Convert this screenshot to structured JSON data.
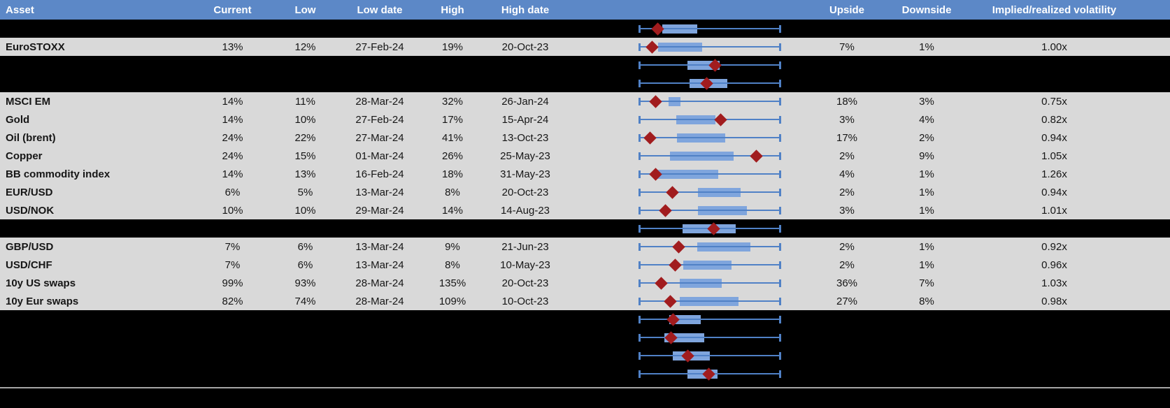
{
  "colors": {
    "header_bg": "#5c88c7",
    "header_text": "#ffffff",
    "row_bg": "#d9d9d9",
    "spacer_bg": "#000000",
    "box_fill": "#7fa5dd",
    "whisker": "#5081c6",
    "marker": "#a11c1e",
    "footer_line": "#a6a6a6"
  },
  "header": {
    "columns": [
      "Asset",
      "Current",
      "Low",
      "Low date",
      "High",
      "High date",
      "",
      "Upside",
      "Downside",
      "Implied/realized volatility",
      ""
    ]
  },
  "rows": [
    {
      "type": "chart-only",
      "box": {
        "lo": 0.167,
        "hi": 0.412,
        "marker": 0.137
      }
    },
    {
      "type": "data",
      "asset": "EuroSTOXX",
      "current": "13%",
      "low": "12%",
      "low_date": "27-Feb-24",
      "high": "19%",
      "high_date": "20-Oct-23",
      "upside": "7%",
      "downside": "1%",
      "implied_realized": "1.00x",
      "box": {
        "lo": 0.136,
        "hi": 0.446,
        "marker": 0.097
      }
    },
    {
      "type": "chart-only",
      "box": {
        "lo": 0.345,
        "hi": 0.57,
        "marker": 0.538
      }
    },
    {
      "type": "chart-only",
      "box": {
        "lo": 0.358,
        "hi": 0.623,
        "marker": 0.48
      }
    },
    {
      "type": "data",
      "asset": "MSCI EM",
      "current": "14%",
      "low": "11%",
      "low_date": "28-Mar-24",
      "high": "32%",
      "high_date": "26-Jan-24",
      "upside": "18%",
      "downside": "3%",
      "implied_realized": "0.75x",
      "box": {
        "lo": 0.211,
        "hi": 0.293,
        "marker": 0.119
      }
    },
    {
      "type": "data",
      "asset": "Gold",
      "current": "14%",
      "low": "10%",
      "low_date": "27-Feb-24",
      "high": "17%",
      "high_date": "15-Apr-24",
      "upside": "3%",
      "downside": "4%",
      "implied_realized": "0.82x",
      "box": {
        "lo": 0.263,
        "hi": 0.541,
        "marker": 0.577
      }
    },
    {
      "type": "data",
      "asset": "Oil (brent)",
      "current": "24%",
      "low": "22%",
      "low_date": "27-Mar-24",
      "high": "41%",
      "high_date": "13-Oct-23",
      "upside": "17%",
      "downside": "2%",
      "implied_realized": "0.94x",
      "box": {
        "lo": 0.268,
        "hi": 0.606,
        "marker": 0.083
      }
    },
    {
      "type": "data",
      "asset": "Copper",
      "current": "24%",
      "low": "15%",
      "low_date": "01-Mar-24",
      "high": "26%",
      "high_date": "25-May-23",
      "upside": "2%",
      "downside": "9%",
      "implied_realized": "1.05x",
      "box": {
        "lo": 0.222,
        "hi": 0.668,
        "marker": 0.824
      }
    },
    {
      "type": "data",
      "asset": "BB commodity index",
      "current": "14%",
      "low": "13%",
      "low_date": "16-Feb-24",
      "high": "18%",
      "high_date": "31-May-23",
      "upside": "4%",
      "downside": "1%",
      "implied_realized": "1.26x",
      "box": {
        "lo": 0.132,
        "hi": 0.557,
        "marker": 0.119
      }
    },
    {
      "type": "data",
      "asset": "EUR/USD",
      "current": "6%",
      "low": "5%",
      "low_date": "13-Mar-24",
      "high": "8%",
      "high_date": "20-Oct-23",
      "upside": "2%",
      "downside": "1%",
      "implied_realized": "0.94x",
      "box": {
        "lo": 0.418,
        "hi": 0.717,
        "marker": 0.239
      }
    },
    {
      "type": "data",
      "asset": "USD/NOK",
      "current": "10%",
      "low": "10%",
      "low_date": "29-Mar-24",
      "high": "14%",
      "high_date": "14-Aug-23",
      "upside": "3%",
      "downside": "1%",
      "implied_realized": "1.01x",
      "box": {
        "lo": 0.415,
        "hi": 0.761,
        "marker": 0.19
      }
    },
    {
      "type": "chart-only",
      "box": {
        "lo": 0.309,
        "hi": 0.68,
        "marker": 0.529
      }
    },
    {
      "type": "data",
      "asset": "GBP/USD",
      "current": "7%",
      "low": "6%",
      "low_date": "13-Mar-24",
      "high": "9%",
      "high_date": "21-Jun-23",
      "upside": "2%",
      "downside": "1%",
      "implied_realized": "0.92x",
      "box": {
        "lo": 0.41,
        "hi": 0.786,
        "marker": 0.284
      }
    },
    {
      "type": "data",
      "asset": "USD/CHF",
      "current": "7%",
      "low": "6%",
      "low_date": "13-Mar-24",
      "high": "8%",
      "high_date": "10-May-23",
      "upside": "2%",
      "downside": "1%",
      "implied_realized": "0.96x",
      "box": {
        "lo": 0.312,
        "hi": 0.65,
        "marker": 0.258
      }
    },
    {
      "type": "data",
      "asset": "10y US swaps",
      "current": "99%",
      "low": "93%",
      "low_date": "28-Mar-24",
      "high": "135%",
      "high_date": "20-Oct-23",
      "upside": "36%",
      "downside": "7%",
      "implied_realized": "1.03x",
      "box": {
        "lo": 0.288,
        "hi": 0.585,
        "marker": 0.157
      }
    },
    {
      "type": "data",
      "asset": "10y Eur swaps",
      "current": "82%",
      "low": "74%",
      "low_date": "28-Mar-24",
      "high": "109%",
      "high_date": "10-Oct-23",
      "upside": "27%",
      "downside": "8%",
      "implied_realized": "0.98x",
      "box": {
        "lo": 0.288,
        "hi": 0.7,
        "marker": 0.222
      }
    },
    {
      "type": "chart-only",
      "box": {
        "lo": 0.217,
        "hi": 0.435,
        "marker": 0.244
      }
    },
    {
      "type": "chart-only",
      "box": {
        "lo": 0.181,
        "hi": 0.462,
        "marker": 0.23
      }
    },
    {
      "type": "chart-only",
      "box": {
        "lo": 0.239,
        "hi": 0.5,
        "marker": 0.345
      }
    },
    {
      "type": "chart-only",
      "box": {
        "lo": 0.345,
        "hi": 0.554,
        "marker": 0.492
      }
    }
  ]
}
